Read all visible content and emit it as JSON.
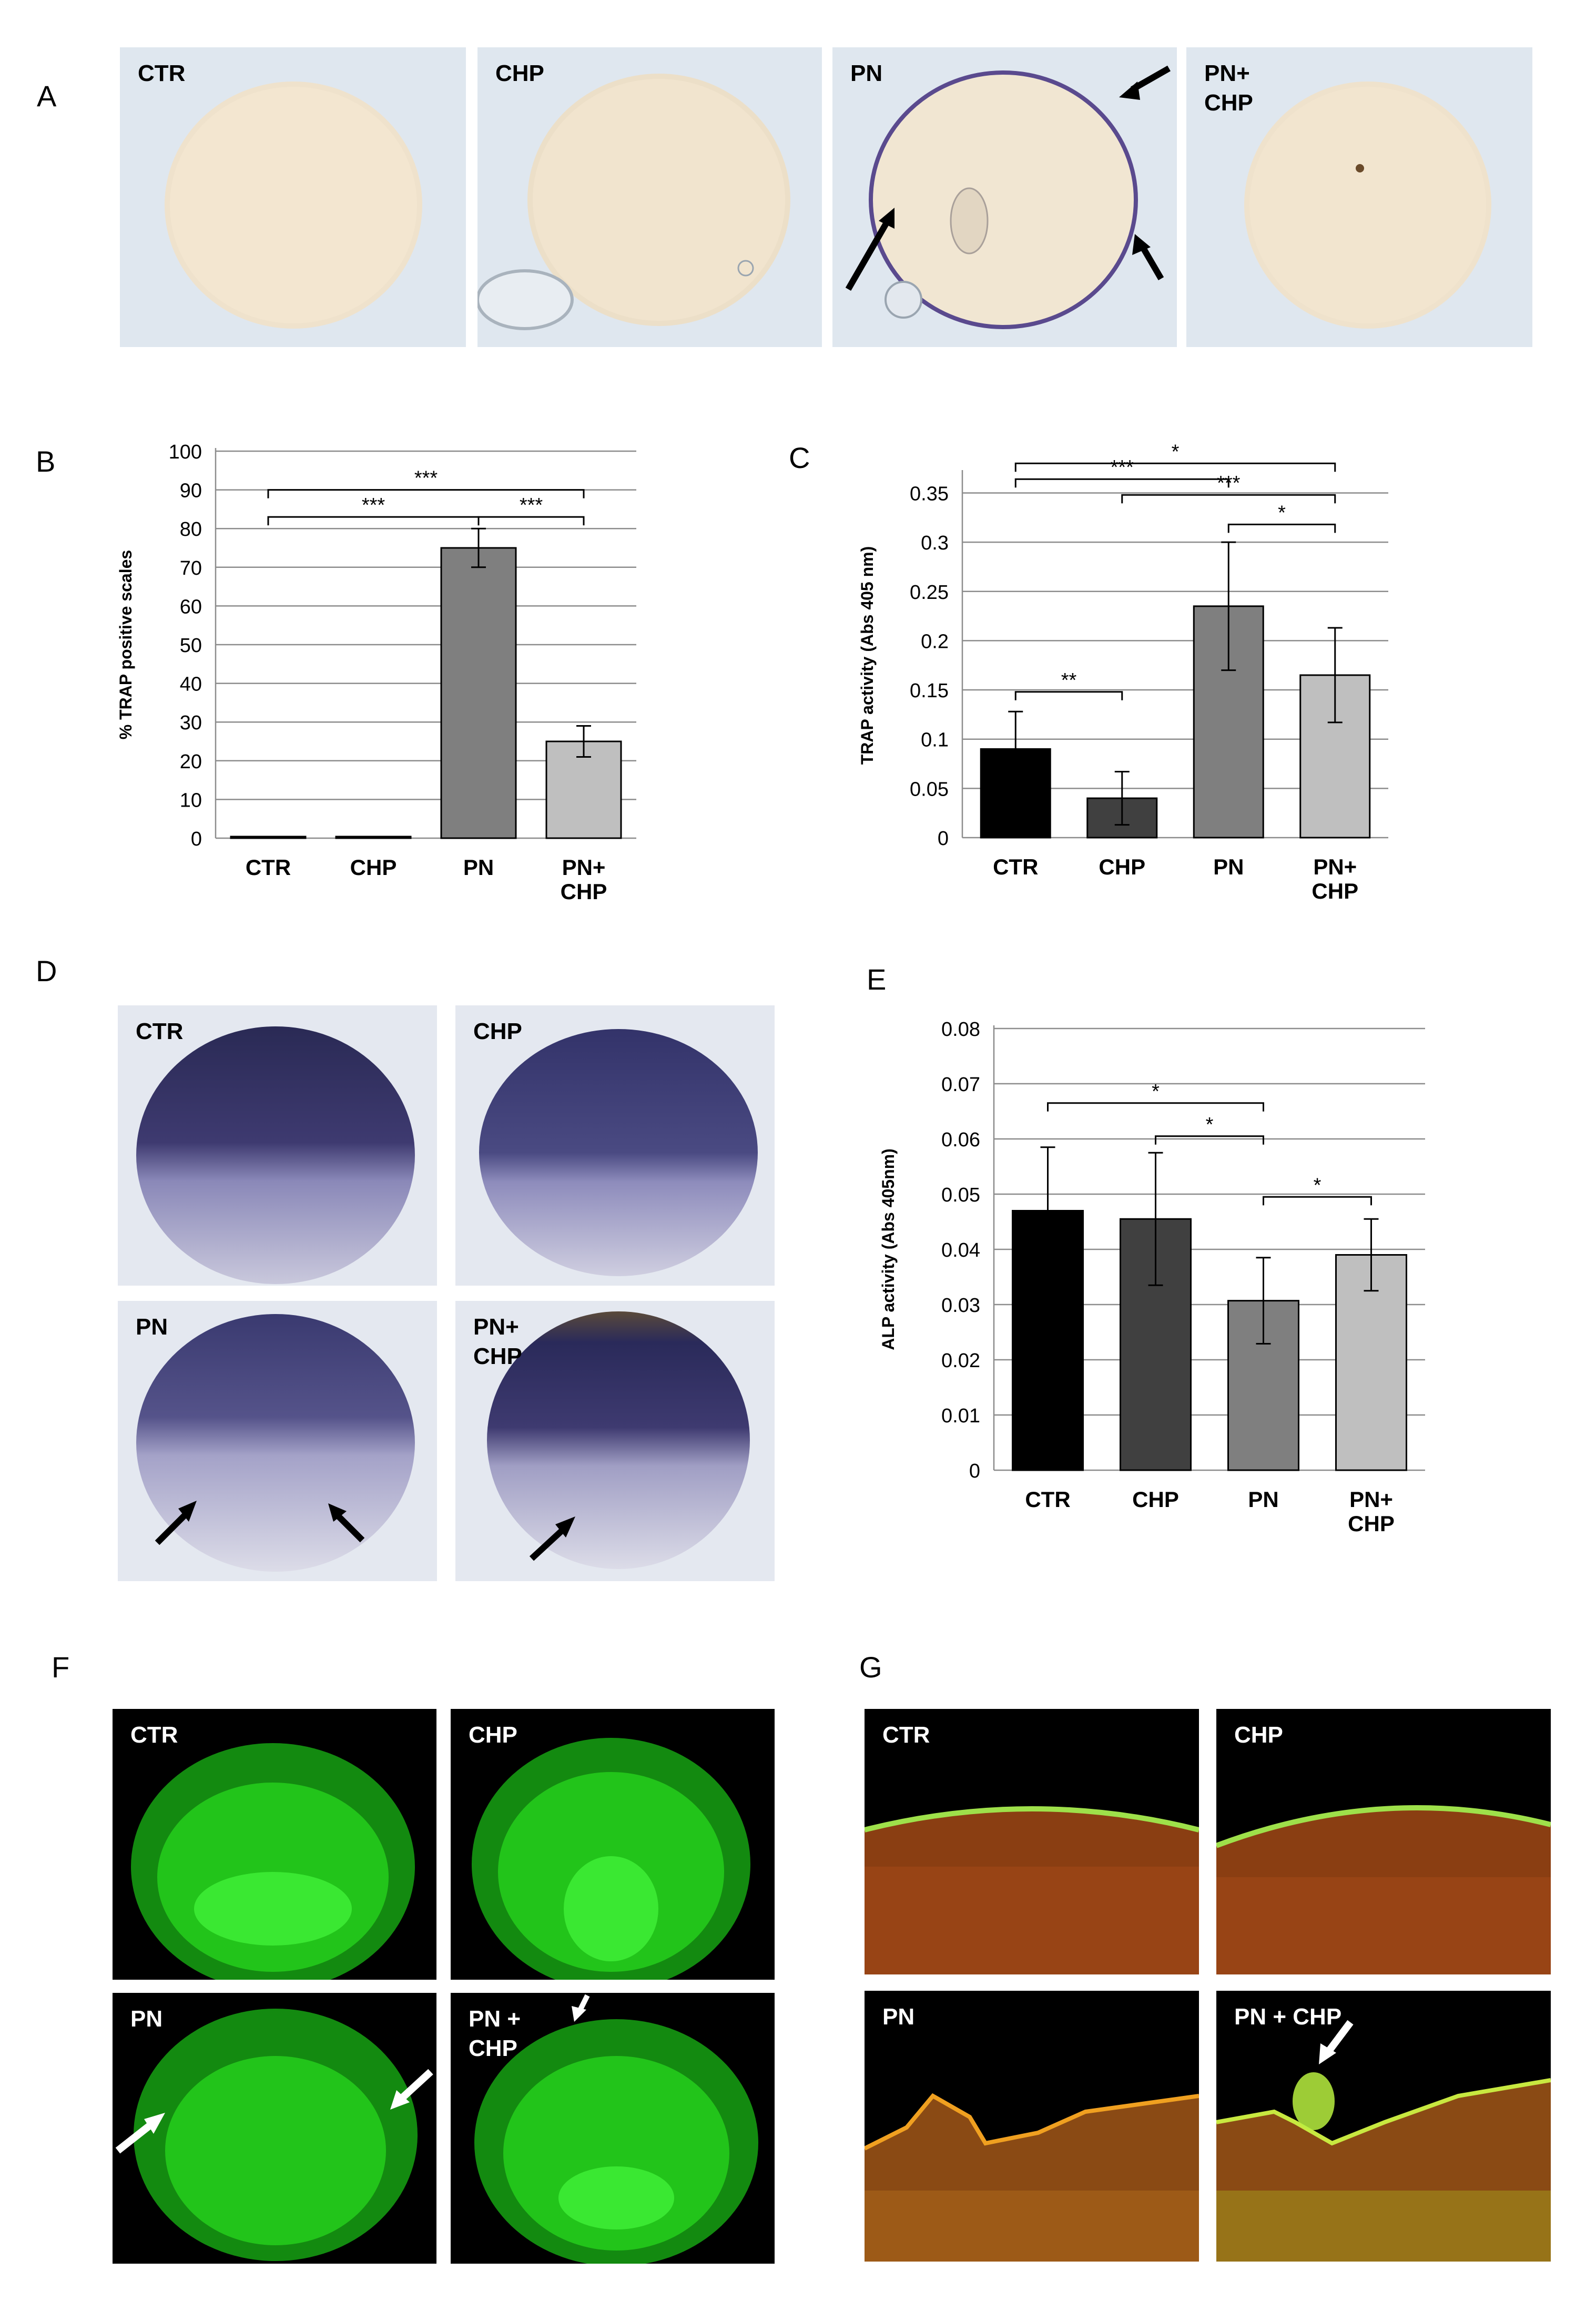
{
  "panel_letters": {
    "A": "A",
    "B": "B",
    "C": "C",
    "D": "D",
    "E": "E",
    "F": "F",
    "G": "G"
  },
  "panel_A": {
    "tiles": [
      "CTR",
      "CHP",
      "PN",
      "PN+\nCHP"
    ]
  },
  "panel_D": {
    "tiles": [
      "CTR",
      "CHP",
      "PN",
      "PN+\nCHP"
    ]
  },
  "panel_F": {
    "tiles": [
      "CTR",
      "CHP",
      "PN",
      "PN +\nCHP"
    ]
  },
  "panel_G": {
    "tiles": [
      "CTR",
      "CHP",
      "PN",
      "PN + CHP"
    ]
  },
  "colors": {
    "ctr_bar": "#000000",
    "chp_bar": "#404040",
    "pn_bar": "#7f7f7f",
    "pnchp_bar": "#bfbfbf",
    "trap_stain_bg": "#f4ede2",
    "alp_stain": "#3e3a70",
    "calcein_green": "#22e01a",
    "alizarin_red": "#8a3e12"
  },
  "chart_data": [
    {
      "panel": "B",
      "type": "bar",
      "categories": [
        "CTR",
        "CHP",
        "PN",
        "PN+\nCHP"
      ],
      "values": [
        0.3,
        0.3,
        75,
        25
      ],
      "errors": [
        0,
        0,
        5,
        4
      ],
      "colors": [
        "#7f7f7f",
        "#7f7f7f",
        "#7f7f7f",
        "#bfbfbf"
      ],
      "ylabel": "% TRAP positive scales",
      "ylim": [
        0,
        100
      ],
      "yticks": [
        "0",
        "10",
        "20",
        "30",
        "40",
        "50",
        "60",
        "70",
        "80",
        "90",
        "100"
      ],
      "ytick_values": [
        0,
        10,
        20,
        30,
        40,
        50,
        60,
        70,
        80,
        90,
        100
      ],
      "grid": true,
      "significance": [
        {
          "from": 0,
          "to": 3,
          "label": "***",
          "level": 90
        },
        {
          "from": 0,
          "to": 2,
          "label": "***",
          "level": 83
        },
        {
          "from": 2,
          "to": 3,
          "label": "***",
          "level": 83
        }
      ]
    },
    {
      "panel": "C",
      "type": "bar",
      "categories": [
        "CTR",
        "CHP",
        "PN",
        "PN+\nCHP"
      ],
      "values": [
        0.09,
        0.04,
        0.235,
        0.165
      ],
      "errors": [
        0.038,
        0.027,
        0.065,
        0.048
      ],
      "colors": [
        "#000000",
        "#404040",
        "#7f7f7f",
        "#bfbfbf"
      ],
      "ylabel": "TRAP activity (Abs 405 nm)",
      "ylim": [
        0,
        0.37
      ],
      "yticks": [
        "0",
        "0.05",
        "0.1",
        "0.15",
        "0.2",
        "0.25",
        "0.3",
        "0.35"
      ],
      "ytick_values": [
        0,
        0.05,
        0.1,
        0.15,
        0.2,
        0.25,
        0.3,
        0.35
      ],
      "grid": true,
      "significance": [
        {
          "from": 0,
          "to": 3,
          "label": "*",
          "level": 0.38
        },
        {
          "from": 0,
          "to": 2,
          "label": "***",
          "level": 0.364
        },
        {
          "from": 1,
          "to": 3,
          "label": "***",
          "level": 0.348
        },
        {
          "from": 2,
          "to": 3,
          "label": "*",
          "level": 0.318
        },
        {
          "from": 0,
          "to": 1,
          "label": "**",
          "level": 0.148
        }
      ]
    },
    {
      "panel": "E",
      "type": "bar",
      "categories": [
        "CTR",
        "CHP",
        "PN",
        "PN+\nCHP"
      ],
      "values": [
        0.047,
        0.0455,
        0.0307,
        0.039
      ],
      "errors": [
        0.0115,
        0.012,
        0.0078,
        0.0065
      ],
      "colors": [
        "#000000",
        "#404040",
        "#7f7f7f",
        "#bfbfbf"
      ],
      "ylabel": "ALP activity (Abs 405nm)",
      "ylim": [
        0,
        0.08
      ],
      "yticks": [
        "0",
        "0.01",
        "0.02",
        "0.03",
        "0.04",
        "0.05",
        "0.06",
        "0.07",
        "0.08"
      ],
      "ytick_values": [
        0,
        0.01,
        0.02,
        0.03,
        0.04,
        0.05,
        0.06,
        0.07,
        0.08
      ],
      "grid": true,
      "significance": [
        {
          "from": 0,
          "to": 2,
          "label": "*",
          "level": 0.0665
        },
        {
          "from": 1,
          "to": 2,
          "label": "*",
          "level": 0.0605
        },
        {
          "from": 2,
          "to": 3,
          "label": "*",
          "level": 0.0495
        }
      ]
    }
  ]
}
